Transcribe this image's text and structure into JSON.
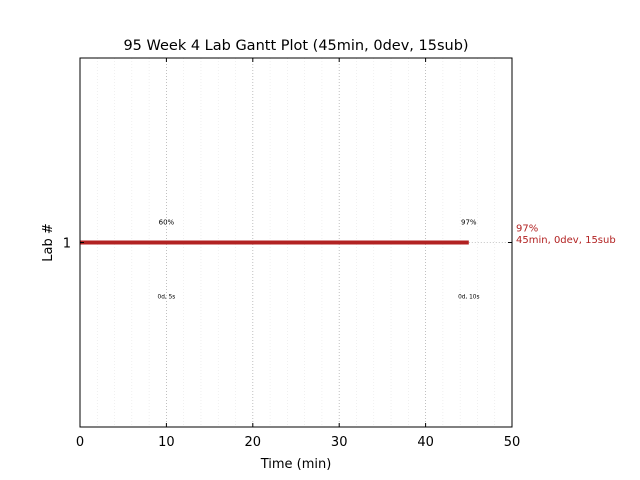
{
  "chart_data": {
    "type": "gantt",
    "title": "95 Week 4 Lab Gantt Plot (45min, 0dev, 15sub)",
    "xlabel": "Time (min)",
    "ylabel": "Lab #",
    "xlim": [
      0,
      50
    ],
    "ylim": [
      0,
      2
    ],
    "x_ticks": [
      0,
      10,
      20,
      30,
      40,
      50
    ],
    "x_tick_labels": [
      "0",
      "10",
      "20",
      "30",
      "40",
      "50"
    ],
    "y_ticks": [
      1
    ],
    "y_tick_labels": [
      "1"
    ],
    "grid": {
      "major_x": true,
      "minor_x": true,
      "y": false
    },
    "bars": [
      {
        "lab": 1,
        "start": 0,
        "end": 45,
        "color": "#b22222"
      }
    ],
    "bar_label": {
      "line1": "97%",
      "line2": "45min, 0dev, 15sub",
      "color": "#b22222"
    },
    "annotations": [
      {
        "x": 10,
        "position": "above",
        "text": "60%"
      },
      {
        "x": 10,
        "position": "below",
        "text": "0d, 5s"
      },
      {
        "x": 45,
        "position": "above",
        "text": "97%"
      },
      {
        "x": 45,
        "position": "below",
        "text": "0d, 10s"
      }
    ]
  }
}
